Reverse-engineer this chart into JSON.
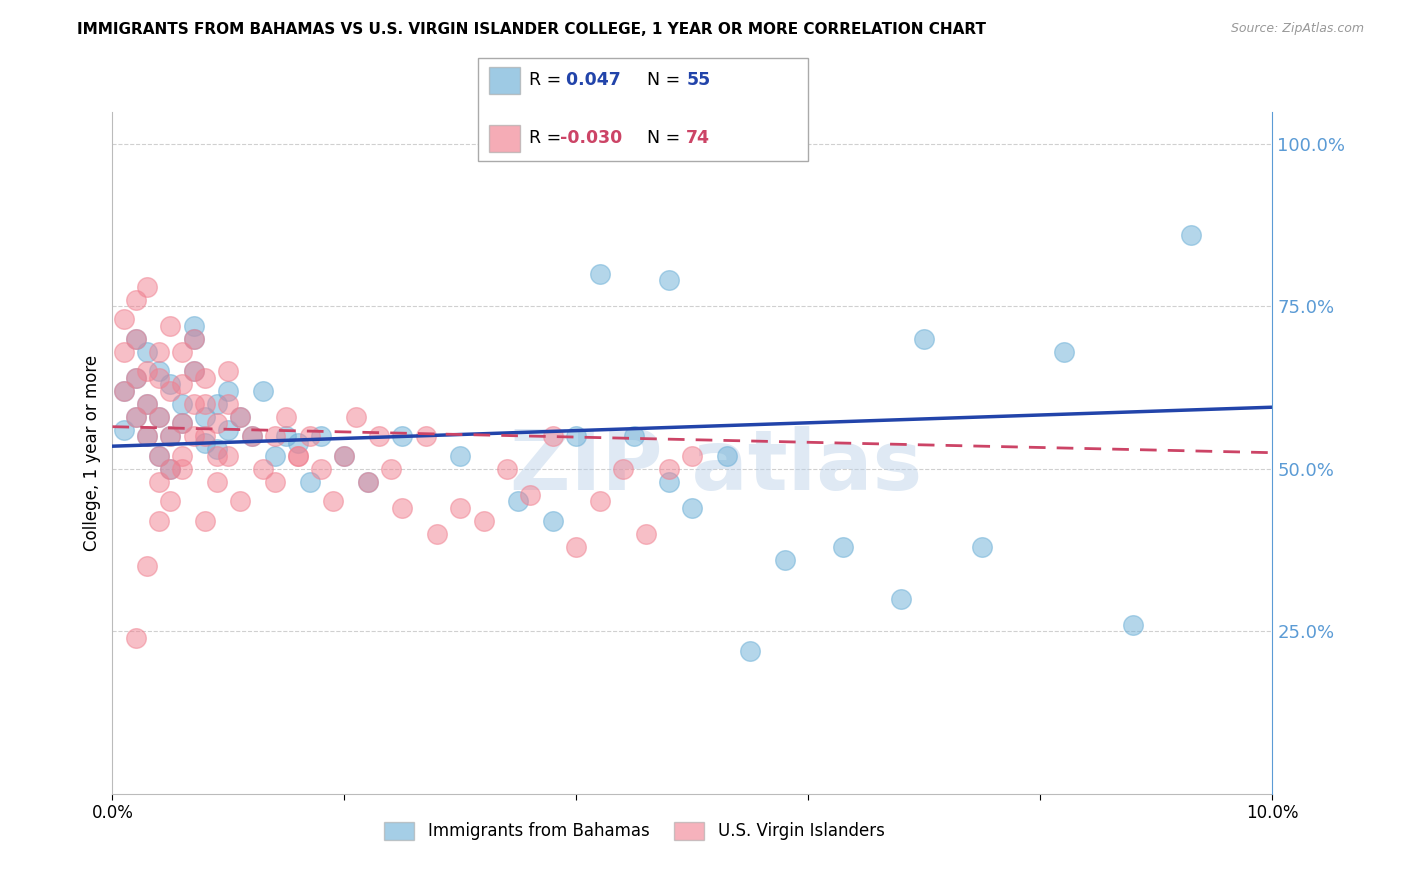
{
  "title": "IMMIGRANTS FROM BAHAMAS VS U.S. VIRGIN ISLANDER COLLEGE, 1 YEAR OR MORE CORRELATION CHART",
  "source": "Source: ZipAtlas.com",
  "ylabel": "College, 1 year or more",
  "xlim": [
    0.0,
    0.1
  ],
  "ylim": [
    0.0,
    1.05
  ],
  "xticks": [
    0.0,
    0.02,
    0.04,
    0.06,
    0.08,
    0.1
  ],
  "xticklabels": [
    "0.0%",
    "",
    "",
    "",
    "",
    "10.0%"
  ],
  "yticks_right": [
    0.25,
    0.5,
    0.75,
    1.0
  ],
  "ytick_right_labels": [
    "25.0%",
    "50.0%",
    "75.0%",
    "100.0%"
  ],
  "blue_color": "#6aaed6",
  "pink_color": "#f08090",
  "blue_line_color": "#2244aa",
  "pink_line_color": "#cc4466",
  "background_color": "#ffffff",
  "grid_color": "#d0d0d0",
  "right_axis_color": "#5b9bd5",
  "blue_scatter_x": [
    0.001,
    0.001,
    0.002,
    0.002,
    0.002,
    0.003,
    0.003,
    0.003,
    0.004,
    0.004,
    0.004,
    0.005,
    0.005,
    0.005,
    0.006,
    0.006,
    0.007,
    0.007,
    0.007,
    0.008,
    0.008,
    0.009,
    0.009,
    0.01,
    0.01,
    0.011,
    0.012,
    0.013,
    0.014,
    0.015,
    0.016,
    0.017,
    0.018,
    0.02,
    0.022,
    0.025,
    0.03,
    0.035,
    0.038,
    0.04,
    0.042,
    0.045,
    0.048,
    0.05,
    0.053,
    0.058,
    0.063,
    0.068,
    0.075,
    0.082,
    0.088,
    0.093,
    0.048,
    0.055,
    0.07
  ],
  "blue_scatter_y": [
    0.56,
    0.62,
    0.7,
    0.58,
    0.64,
    0.55,
    0.6,
    0.68,
    0.52,
    0.58,
    0.65,
    0.5,
    0.55,
    0.63,
    0.57,
    0.6,
    0.72,
    0.65,
    0.7,
    0.54,
    0.58,
    0.53,
    0.6,
    0.56,
    0.62,
    0.58,
    0.55,
    0.62,
    0.52,
    0.55,
    0.54,
    0.48,
    0.55,
    0.52,
    0.48,
    0.55,
    0.52,
    0.45,
    0.42,
    0.55,
    0.8,
    0.55,
    0.48,
    0.44,
    0.52,
    0.36,
    0.38,
    0.3,
    0.38,
    0.68,
    0.26,
    0.86,
    0.79,
    0.22,
    0.7
  ],
  "pink_scatter_x": [
    0.001,
    0.001,
    0.001,
    0.002,
    0.002,
    0.002,
    0.002,
    0.003,
    0.003,
    0.003,
    0.003,
    0.004,
    0.004,
    0.004,
    0.004,
    0.005,
    0.005,
    0.005,
    0.005,
    0.006,
    0.006,
    0.006,
    0.007,
    0.007,
    0.007,
    0.008,
    0.008,
    0.008,
    0.009,
    0.009,
    0.01,
    0.01,
    0.011,
    0.012,
    0.013,
    0.014,
    0.015,
    0.016,
    0.017,
    0.018,
    0.019,
    0.02,
    0.021,
    0.022,
    0.023,
    0.024,
    0.025,
    0.027,
    0.028,
    0.03,
    0.032,
    0.034,
    0.036,
    0.038,
    0.04,
    0.042,
    0.044,
    0.046,
    0.048,
    0.05,
    0.004,
    0.005,
    0.006,
    0.007,
    0.008,
    0.009,
    0.01,
    0.011,
    0.014,
    0.016,
    0.003,
    0.004,
    0.006,
    0.002
  ],
  "pink_scatter_y": [
    0.62,
    0.68,
    0.73,
    0.58,
    0.64,
    0.7,
    0.76,
    0.55,
    0.6,
    0.65,
    0.78,
    0.52,
    0.58,
    0.64,
    0.68,
    0.5,
    0.55,
    0.62,
    0.72,
    0.57,
    0.63,
    0.68,
    0.6,
    0.65,
    0.7,
    0.55,
    0.6,
    0.64,
    0.52,
    0.57,
    0.6,
    0.65,
    0.58,
    0.55,
    0.5,
    0.55,
    0.58,
    0.52,
    0.55,
    0.5,
    0.45,
    0.52,
    0.58,
    0.48,
    0.55,
    0.5,
    0.44,
    0.55,
    0.4,
    0.44,
    0.42,
    0.5,
    0.46,
    0.55,
    0.38,
    0.45,
    0.5,
    0.4,
    0.5,
    0.52,
    0.48,
    0.45,
    0.5,
    0.55,
    0.42,
    0.48,
    0.52,
    0.45,
    0.48,
    0.52,
    0.35,
    0.42,
    0.52,
    0.24
  ]
}
